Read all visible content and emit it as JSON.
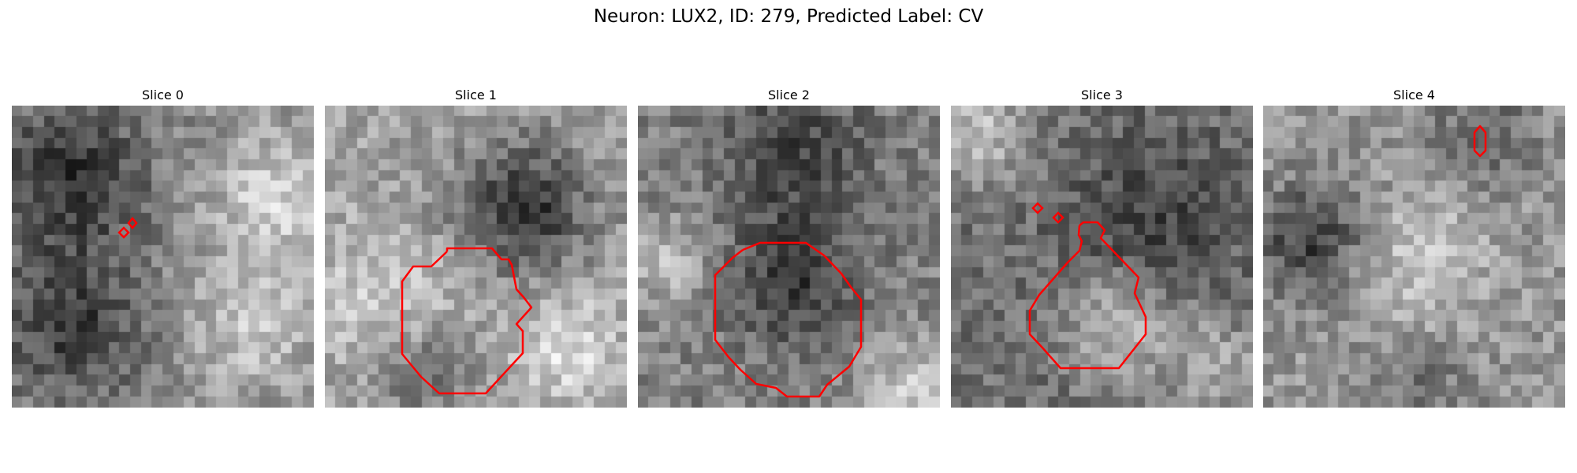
{
  "figure": {
    "title": "Neuron: LUX2, ID: 279, Predicted Label: CV"
  },
  "panels": [
    {
      "title": "Slice 0",
      "contour_color": "#ff0000"
    },
    {
      "title": "Slice 1",
      "contour_color": "#ff0000"
    },
    {
      "title": "Slice 2",
      "contour_color": "#ff0000"
    },
    {
      "title": "Slice 3",
      "contour_color": "#ff0000"
    },
    {
      "title": "Slice 4",
      "contour_color": "#ff0000"
    }
  ]
}
